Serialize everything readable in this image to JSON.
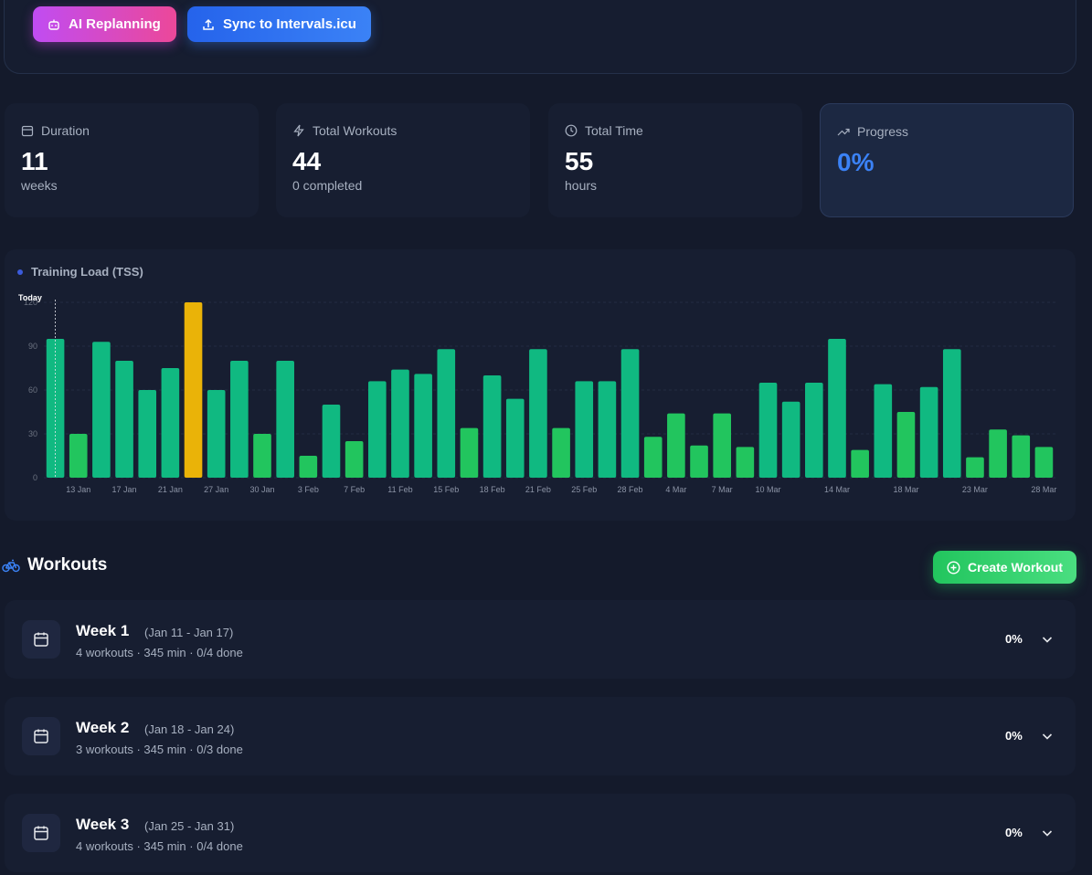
{
  "toolbar": {
    "buttons": [
      "AI Replanning",
      "Sync to Intervals.icu"
    ]
  },
  "stats": [
    {
      "label": "Duration",
      "value": 11,
      "sub": "weeks"
    },
    {
      "label": "Total Workouts",
      "value": 44,
      "sub": "0 completed"
    },
    {
      "label": "Total Time",
      "value": 55,
      "sub": "hours"
    },
    {
      "label": "Progress",
      "value": "0%"
    }
  ],
  "chart_data": {
    "type": "bar",
    "title": "Training Load (TSS)",
    "marker_label": "Today",
    "categories": [
      null,
      "13 Jan",
      null,
      "17 Jan",
      null,
      "21 Jan",
      null,
      "27 Jan",
      null,
      "30 Jan",
      null,
      "3 Feb",
      null,
      "7 Feb",
      null,
      "11 Feb",
      null,
      "15 Feb",
      null,
      "18 Feb",
      null,
      "21 Feb",
      null,
      "25 Feb",
      null,
      "28 Feb",
      null,
      "4 Mar",
      null,
      "7 Mar",
      null,
      "10 Mar",
      null,
      null,
      "14 Mar",
      null,
      null,
      "18 Mar",
      null,
      null,
      "23 Mar",
      null,
      null,
      "28 Mar"
    ],
    "values": [
      95,
      30,
      93,
      80,
      60,
      75,
      120,
      60,
      80,
      30,
      80,
      15,
      50,
      25,
      66,
      74,
      71,
      88,
      34,
      70,
      54,
      88,
      34,
      66,
      66,
      88,
      28,
      44,
      22,
      44,
      21,
      65,
      52,
      65,
      95,
      19,
      64,
      45,
      62,
      88,
      14,
      33,
      29,
      21
    ],
    "colors": [
      "#10b981",
      "#22c55e",
      "#10b981",
      "#10b981",
      "#10b981",
      "#10b981",
      "#eab308",
      "#10b981",
      "#10b981",
      "#22c55e",
      "#10b981",
      "#22c55e",
      "#10b981",
      "#22c55e",
      "#10b981",
      "#10b981",
      "#10b981",
      "#10b981",
      "#22c55e",
      "#10b981",
      "#10b981",
      "#10b981",
      "#22c55e",
      "#10b981",
      "#10b981",
      "#10b981",
      "#22c55e",
      "#22c55e",
      "#22c55e",
      "#22c55e",
      "#22c55e",
      "#10b981",
      "#10b981",
      "#10b981",
      "#10b981",
      "#22c55e",
      "#10b981",
      "#22c55e",
      "#10b981",
      "#10b981",
      "#22c55e",
      "#22c55e",
      "#22c55e",
      "#22c55e"
    ],
    "ylim": [
      0,
      120
    ],
    "yticks": [
      0,
      30,
      60,
      90,
      120
    ],
    "grid": true
  },
  "workouts": {
    "title": "Workouts",
    "create_button": "Create Workout",
    "weeks": [
      {
        "title": "Week 1",
        "range": "(Jan 11 - Jan 17)",
        "summary": "4 workouts · 345 min · 0/4 done",
        "progress": "0%"
      },
      {
        "title": "Week 2",
        "range": "(Jan 18 - Jan 24)",
        "summary": "3 workouts · 345 min · 0/3 done",
        "progress": "0%"
      },
      {
        "title": "Week 3",
        "range": "(Jan 25 - Jan 31)",
        "summary": "4 workouts · 345 min · 0/4 done",
        "progress": "0%"
      }
    ]
  }
}
